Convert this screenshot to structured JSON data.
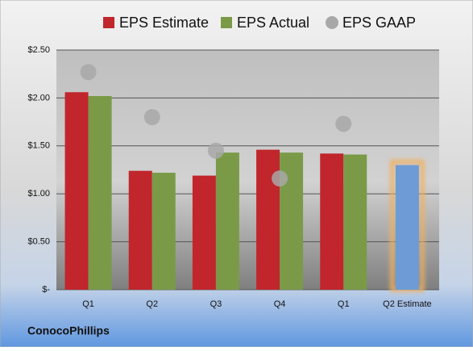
{
  "chart_data": {
    "type": "bar",
    "company": "ConocoPhillips",
    "categories": [
      "Q1",
      "Q2",
      "Q3",
      "Q4",
      "Q1",
      "Q2 Estimate"
    ],
    "series": [
      {
        "name": "EPS Estimate",
        "color": "#c0262c",
        "colors": [
          "#c0262c",
          "#c0262c",
          "#c0262c",
          "#c0262c",
          "#c0262c",
          "#6e9bd6"
        ],
        "values": [
          2.06,
          1.24,
          1.19,
          1.46,
          1.42,
          1.3
        ]
      },
      {
        "name": "EPS Actual",
        "color": "#7a9a48",
        "values": [
          2.02,
          1.22,
          1.43,
          1.43,
          1.41,
          null
        ]
      },
      {
        "name": "EPS GAAP",
        "color": "#a8a8a8",
        "marker": "circle",
        "values": [
          2.27,
          1.8,
          1.45,
          1.16,
          1.73,
          null
        ]
      }
    ],
    "highlight_color": "#f0b060",
    "ylim": [
      0,
      2.5
    ],
    "yticks": [
      {
        "value": 0,
        "label": "$-"
      },
      {
        "value": 0.5,
        "label": "$0.50"
      },
      {
        "value": 1,
        "label": "$1.00"
      },
      {
        "value": 1.5,
        "label": "$1.50"
      },
      {
        "value": 2,
        "label": "$2.00"
      },
      {
        "value": 2.5,
        "label": "$2.50"
      }
    ],
    "grid": true,
    "legend": "top"
  }
}
